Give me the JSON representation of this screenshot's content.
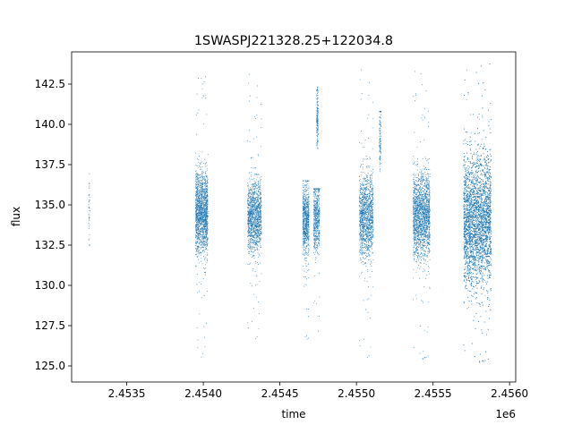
{
  "chart_data": {
    "type": "scatter",
    "title": "1SWASPJ221328.25+122034.8",
    "xlabel": "time",
    "ylabel": "flux",
    "x_offset_label": "1e6",
    "xlim": [
      2.45314,
      2.45604
    ],
    "ylim": [
      124.0,
      144.5
    ],
    "x_ticks": [
      {
        "value": 2.4535,
        "label": "2.4535"
      },
      {
        "value": 2.454,
        "label": "2.4540"
      },
      {
        "value": 2.4545,
        "label": "2.4545"
      },
      {
        "value": 2.455,
        "label": "2.4550"
      },
      {
        "value": 2.4555,
        "label": "2.4555"
      },
      {
        "value": 2.456,
        "label": "2.4560"
      }
    ],
    "y_ticks": [
      {
        "value": 125.0,
        "label": "125.0"
      },
      {
        "value": 127.5,
        "label": "127.5"
      },
      {
        "value": 130.0,
        "label": "130.0"
      },
      {
        "value": 132.5,
        "label": "132.5"
      },
      {
        "value": 135.0,
        "label": "135.0"
      },
      {
        "value": 137.5,
        "label": "137.5"
      },
      {
        "value": 140.0,
        "label": "140.0"
      },
      {
        "value": 142.5,
        "label": "142.5"
      }
    ],
    "grid": false,
    "marker_color": "#1f77b4",
    "clusters": [
      {
        "x_start": 2.45325,
        "x_end": 2.45326,
        "center": 134.5,
        "spread": 1.2,
        "y_min": 132.5,
        "y_max": 137.6,
        "n": 40
      },
      {
        "x_start": 2.45395,
        "x_end": 2.45403,
        "center": 134.5,
        "spread": 1.3,
        "y_min": 125.5,
        "y_max": 143.4,
        "n": 1600
      },
      {
        "x_start": 2.45429,
        "x_end": 2.45438,
        "center": 134.3,
        "spread": 1.1,
        "y_min": 126.5,
        "y_max": 143.5,
        "n": 1300
      },
      {
        "x_start": 2.45465,
        "x_end": 2.45469,
        "center": 134.0,
        "spread": 1.1,
        "y_min": 126.5,
        "y_max": 136.5,
        "n": 700
      },
      {
        "x_start": 2.45472,
        "x_end": 2.45476,
        "center": 134.3,
        "spread": 1.1,
        "y_min": 127.0,
        "y_max": 136.0,
        "n": 550
      },
      {
        "x_start": 2.45474,
        "x_end": 2.45475,
        "center": 140.5,
        "spread": 0.9,
        "y_min": 138.5,
        "y_max": 142.3,
        "n": 160
      },
      {
        "x_start": 2.45502,
        "x_end": 2.45511,
        "center": 134.3,
        "spread": 1.3,
        "y_min": 125.3,
        "y_max": 143.8,
        "n": 1300
      },
      {
        "x_start": 2.45515,
        "x_end": 2.45516,
        "center": 139.0,
        "spread": 1.0,
        "y_min": 137.0,
        "y_max": 140.8,
        "n": 110
      },
      {
        "x_start": 2.45537,
        "x_end": 2.45548,
        "center": 134.3,
        "spread": 1.3,
        "y_min": 125.2,
        "y_max": 143.7,
        "n": 1800
      },
      {
        "x_start": 2.4557,
        "x_end": 2.45588,
        "center": 134.0,
        "spread": 2.0,
        "y_min": 125.0,
        "y_max": 143.8,
        "n": 5000
      }
    ]
  }
}
